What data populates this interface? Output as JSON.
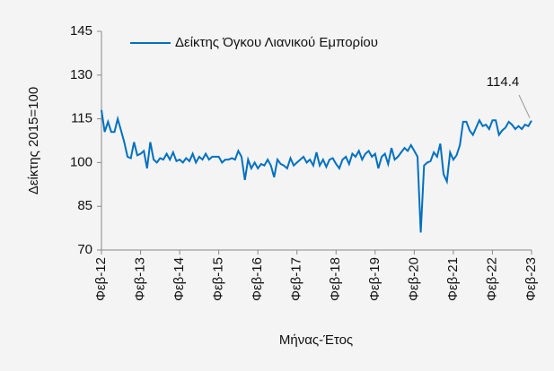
{
  "chart_data": {
    "type": "line",
    "legend": "top",
    "ylabel": "Δείκτης 2015=100",
    "xlabel": "Μήνας-Έτος",
    "ylim": [
      70,
      145
    ],
    "yticks": [
      70,
      85,
      100,
      115,
      130,
      145
    ],
    "categories": [
      "Φεβ-12",
      null,
      null,
      null,
      null,
      null,
      null,
      null,
      null,
      null,
      null,
      null,
      "Φεβ-13",
      null,
      null,
      null,
      null,
      null,
      null,
      null,
      null,
      null,
      null,
      null,
      "Φεβ-14",
      null,
      null,
      null,
      null,
      null,
      null,
      null,
      null,
      null,
      null,
      null,
      "Φεβ-15",
      null,
      null,
      null,
      null,
      null,
      null,
      null,
      null,
      null,
      null,
      null,
      "Φεβ-16",
      null,
      null,
      null,
      null,
      null,
      null,
      null,
      null,
      null,
      null,
      null,
      "Φεβ-17",
      null,
      null,
      null,
      null,
      null,
      null,
      null,
      null,
      null,
      null,
      null,
      "Φεβ-18",
      null,
      null,
      null,
      null,
      null,
      null,
      null,
      null,
      null,
      null,
      null,
      "Φεβ-19",
      null,
      null,
      null,
      null,
      null,
      null,
      null,
      null,
      null,
      null,
      null,
      "Φεβ-20",
      null,
      null,
      null,
      null,
      null,
      null,
      null,
      null,
      null,
      null,
      null,
      "Φεβ-21",
      null,
      null,
      null,
      null,
      null,
      null,
      null,
      null,
      null,
      null,
      null,
      "Φεβ-22",
      null,
      null,
      null,
      null,
      null,
      null,
      null,
      null,
      null,
      null,
      null,
      "Φεβ-23"
    ],
    "series": [
      {
        "name": "Δείκτης Όγκου Λιανικού Εμπορίου",
        "color": "#0070c0",
        "values": [
          118,
          110.5,
          114,
          110.5,
          110.5,
          115,
          111,
          107,
          102,
          101.5,
          107,
          102.5,
          103,
          104,
          98,
          107,
          101,
          100,
          101.5,
          101,
          103,
          101,
          103.5,
          100.5,
          101,
          100,
          101.5,
          100.5,
          103,
          100,
          102,
          101,
          103,
          101,
          102,
          102,
          102,
          100,
          101,
          101,
          101.5,
          101,
          104,
          102,
          94,
          101,
          98,
          100,
          98,
          99.5,
          99,
          101,
          99,
          95,
          101,
          99.5,
          99,
          98,
          101.5,
          99,
          100,
          101,
          102,
          100,
          101,
          99,
          103.5,
          99,
          101,
          98.5,
          101,
          101.5,
          99.5,
          98,
          101,
          102,
          99.5,
          103,
          102,
          104,
          101,
          103,
          104,
          102,
          103,
          98,
          102,
          103,
          99.5,
          105,
          101,
          102,
          103.5,
          105,
          104,
          106,
          104,
          102,
          76,
          99,
          100,
          100.5,
          103.5,
          102,
          106.5,
          96,
          93.5,
          103.5,
          101,
          102.5,
          106,
          114,
          114,
          111,
          109.5,
          112,
          114.5,
          112.5,
          113,
          111.5,
          114.5,
          114.5,
          109.5,
          111,
          112,
          114,
          113,
          111.5,
          112.5,
          111.5,
          113,
          112.5,
          114.4
        ]
      }
    ]
  }
}
